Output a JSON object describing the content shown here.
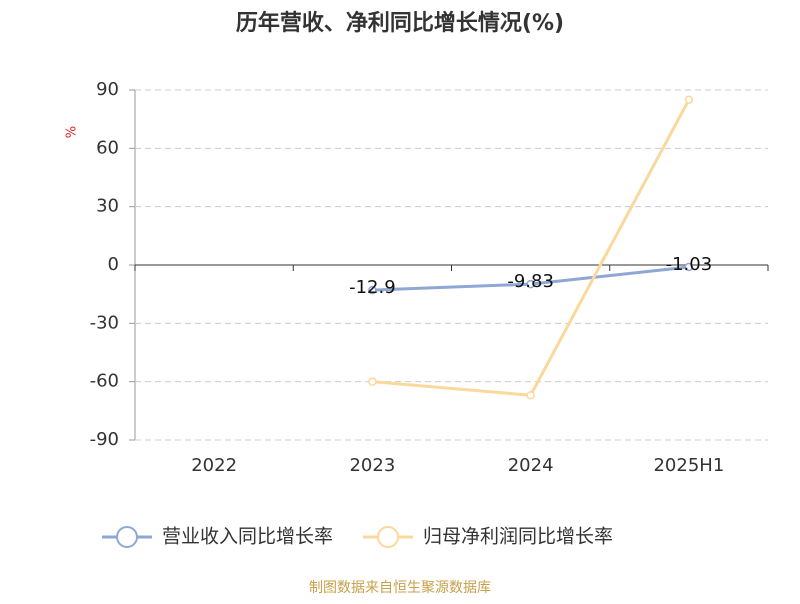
{
  "chart_data": {
    "type": "line",
    "title": "历年营收、净利同比增长情况(%)",
    "y_label": "%",
    "source": "制图数据来自恒生聚源数据库",
    "categories": [
      "2022",
      "2023",
      "2024",
      "2025H1"
    ],
    "series": [
      {
        "name": "营业收入同比增长率",
        "color": "#8ea7d5",
        "values": [
          null,
          -12.9,
          -9.83,
          -1.03
        ],
        "show_labels": true
      },
      {
        "name": "归母净利润同比增长率",
        "color": "#fbd89b",
        "values": [
          null,
          -60,
          -67,
          85
        ],
        "show_labels": false
      }
    ],
    "ylim": [
      -90,
      90
    ],
    "yticks": [
      -90,
      -60,
      -30,
      0,
      30,
      60,
      90
    ],
    "grid": true
  }
}
